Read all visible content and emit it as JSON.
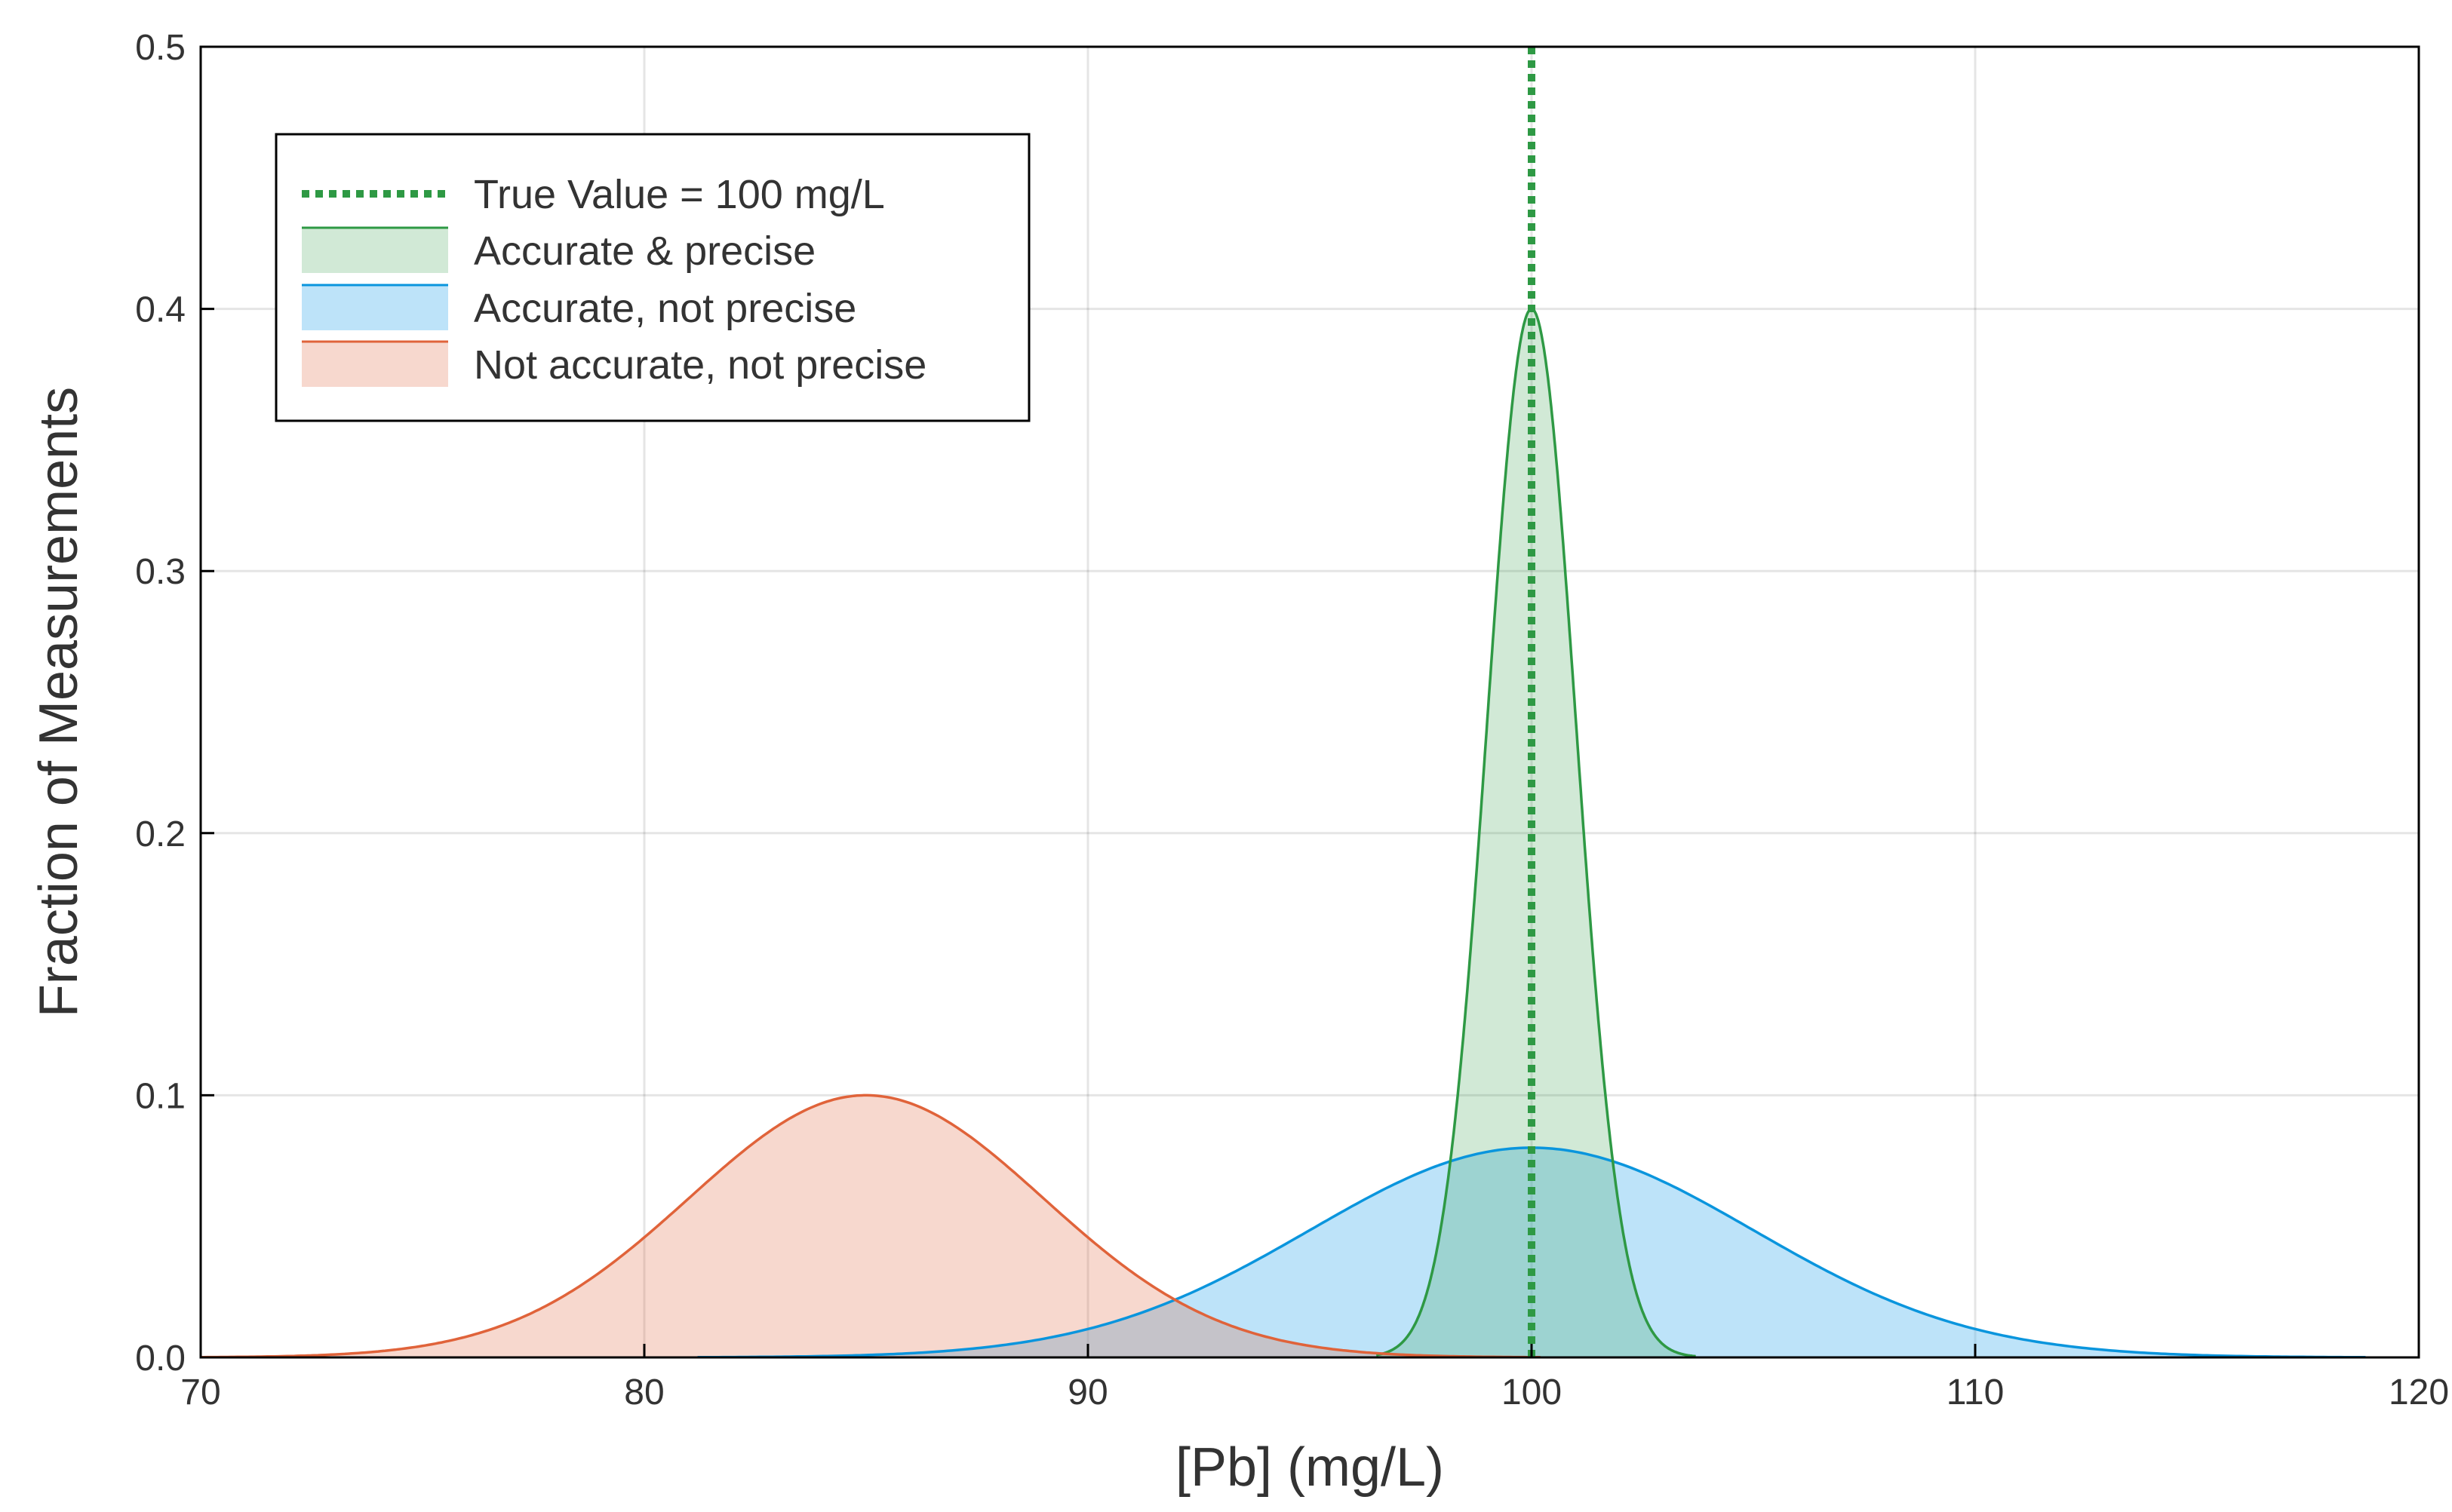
{
  "chart_data": {
    "type": "area",
    "xlabel": "[Pb] (mg/L)",
    "ylabel": "Fraction of Measurements",
    "xlim": [
      70,
      120
    ],
    "ylim": [
      0,
      0.5
    ],
    "x_ticks": [
      "70",
      "80",
      "90",
      "100",
      "110",
      "120"
    ],
    "y_ticks": [
      "0.0",
      "0.1",
      "0.2",
      "0.3",
      "0.4",
      "0.5"
    ],
    "grid": true,
    "legend_position": "top-left",
    "reference_line": {
      "name": "True Value = 100 mg/L",
      "x": 100,
      "style": "dotted",
      "color": "#2e9944"
    },
    "series": [
      {
        "name": "Accurate & precise",
        "mean": 100,
        "sd": 1,
        "peak": 0.4,
        "x_range": [
          96.5,
          103.7
        ],
        "line_color": "#2e9944",
        "fill_color": "#2e9944",
        "fill_opacity": 0.22
      },
      {
        "name": "Accurate, not precise",
        "mean": 100,
        "sd": 5,
        "peak": 0.08,
        "x_range": [
          81.2,
          118.8
        ],
        "line_color": "#0a95dd",
        "fill_color": "#52b5f0",
        "fill_opacity": 0.38
      },
      {
        "name": "Not accurate, not precise",
        "mean": 85,
        "sd": 4,
        "peak": 0.1,
        "x_range": [
          70,
          100.2
        ],
        "line_color": "#e0633a",
        "fill_color": "#e0633a",
        "fill_opacity": 0.25
      }
    ]
  }
}
